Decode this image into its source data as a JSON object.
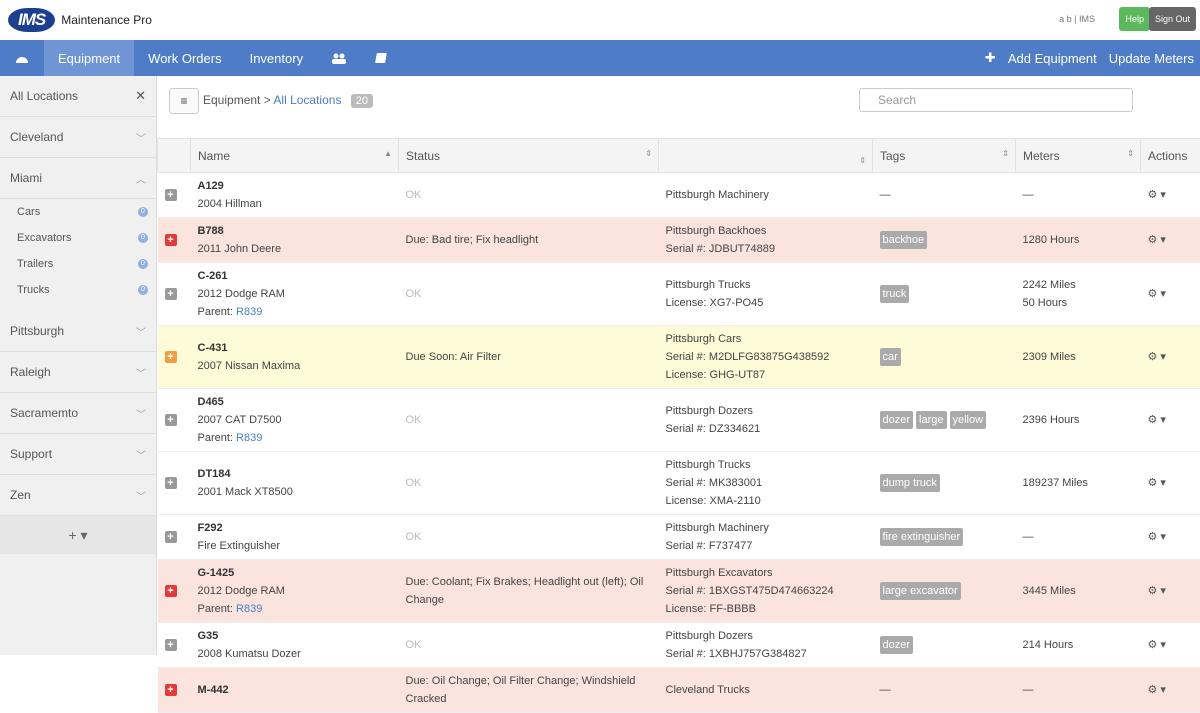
{
  "header": {
    "logo": "IMS",
    "app_name": "Maintenance Pro",
    "user": "a b | IMS",
    "help": "Help",
    "sign_out": "Sign Out"
  },
  "nav": {
    "items": [
      "Equipment",
      "Work Orders",
      "Inventory"
    ],
    "active": 0,
    "right": [
      "Add Equipment",
      "Update Meters"
    ]
  },
  "sidebar": {
    "all_locations": "All Locations",
    "locations": [
      {
        "name": "Cleveland"
      },
      {
        "name": "Miami",
        "children": [
          {
            "name": "Cars",
            "count": 0
          },
          {
            "name": "Excavators",
            "count": 0
          },
          {
            "name": "Trailers",
            "count": 0
          },
          {
            "name": "Trucks",
            "count": 0
          }
        ]
      },
      {
        "name": "Pittsburgh"
      },
      {
        "name": "Raleigh"
      },
      {
        "name": "Sacramemto"
      },
      {
        "name": "Support"
      },
      {
        "name": "Zen"
      }
    ]
  },
  "toolbar": {
    "breadcrumb": "Equipment",
    "separator": ">",
    "current": "All Locations",
    "count": 20,
    "search": "Search"
  },
  "table": {
    "columns": {
      "name": "Name",
      "status": "Status",
      "tags": "Tags",
      "meters": "Meters",
      "actions": "Actions"
    },
    "empty_mark": "—",
    "parent_label": "Parent:",
    "rows": [
      {
        "id": "A129",
        "model": "2004 Hillman",
        "severity": "ok",
        "status": "OK",
        "location": "Pittsburgh Machinery",
        "details": [],
        "tags": [],
        "meters": []
      },
      {
        "id": "B788",
        "model": "2011 John Deere",
        "severity": "overdue",
        "status": "Due: Bad tire; Fix headlight",
        "location": "Pittsburgh Backhoes",
        "details": [
          "Serial #: JDBUT74889"
        ],
        "tags": [
          "backhoe"
        ],
        "meters": [
          "1280 Hours"
        ]
      },
      {
        "id": "C-261",
        "model": "2012 Dodge RAM",
        "parent": "R839",
        "severity": "ok",
        "status": "OK",
        "location": "Pittsburgh Trucks",
        "details": [
          "License: XG7-PO45"
        ],
        "tags": [
          "truck"
        ],
        "meters": [
          "2242 Miles",
          "50 Hours"
        ]
      },
      {
        "id": "C-431",
        "model": "2007 Nissan Maxima",
        "severity": "soon",
        "status": "Due Soon: Air Filter",
        "location": "Pittsburgh Cars",
        "details": [
          "Serial #: M2DLFG83875G438592",
          "License: GHG-UT87"
        ],
        "tags": [
          "car"
        ],
        "meters": [
          "2309 Miles"
        ]
      },
      {
        "id": "D465",
        "model": "2007 CAT D7500",
        "parent": "R839",
        "severity": "ok",
        "status": "OK",
        "location": "Pittsburgh Dozers",
        "details": [
          "Serial #: DZ334621"
        ],
        "tags": [
          "dozer",
          "large",
          "yellow"
        ],
        "meters": [
          "2396 Hours"
        ]
      },
      {
        "id": "DT184",
        "model": "2001 Mack XT8500",
        "severity": "ok",
        "status": "OK",
        "location": "Pittsburgh Trucks",
        "details": [
          "Serial #: MK383001",
          "License: XMA-2110"
        ],
        "tags": [
          "dump truck"
        ],
        "meters": [
          "189237 Miles"
        ]
      },
      {
        "id": "F292",
        "model": "Fire Extinguisher",
        "severity": "ok",
        "status": "OK",
        "location": "Pittsburgh Machinery",
        "details": [
          "Serial #: F737477"
        ],
        "tags": [
          "fire extinguisher"
        ],
        "meters": []
      },
      {
        "id": "G-1425",
        "model": "2012 Dodge RAM",
        "parent": "R839",
        "severity": "overdue",
        "status": "Due: Coolant; Fix Brakes; Headlight out (left); Oil Change",
        "location": "Pittsburgh Excavators",
        "details": [
          "Serial #: 1BXGST475D474663224",
          "License: FF-BBBB"
        ],
        "tags": [
          "large excavator"
        ],
        "meters": [
          "3445 Miles"
        ]
      },
      {
        "id": "G35",
        "model": "2008 Kumatsu Dozer",
        "severity": "ok",
        "status": "OK",
        "location": "Pittsburgh Dozers",
        "details": [
          "Serial #: 1XBHJ757G384827"
        ],
        "tags": [
          "dozer"
        ],
        "meters": [
          "214 Hours"
        ]
      },
      {
        "id": "M-442",
        "severity": "overdue",
        "status": "Due: Oil Change; Oil Filter Change; Windshield Cracked",
        "location": "Cleveland Trucks",
        "details": [],
        "tags": [],
        "meters": []
      }
    ]
  }
}
